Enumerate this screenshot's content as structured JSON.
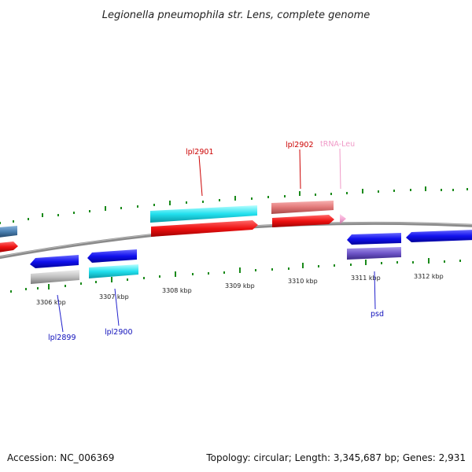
{
  "header": {
    "title": "Legionella pneumophila str. Lens, complete genome"
  },
  "footer": {
    "accession": "Accession: NC_006369",
    "summary": "Topology: circular; Length: 3,345,687 bp; Genes: 2,931"
  },
  "scale": {
    "unit_labels": [
      "3306 kbp",
      "3307 kbp",
      "3308 kbp",
      "3309 kbp",
      "3310 kbp",
      "3311 kbp",
      "3312 kbp"
    ]
  },
  "genes": [
    {
      "name": "lpl2899",
      "label": "lpl2899",
      "strand": "-",
      "color": "#0000ee",
      "gene_color": "#2222ee",
      "cds_color": "#c0c0c0"
    },
    {
      "name": "lpl2900",
      "label": "lpl2900",
      "strand": "-",
      "color": "#0000cc",
      "gene_color": "#1111dd",
      "cds_color": "#22e0ee"
    },
    {
      "name": "lpl2901",
      "label": "lpl2901",
      "strand": "+",
      "color": "#dd0000",
      "gene_color": "#ee1111",
      "cds_color": "#22e0ee"
    },
    {
      "name": "lpl2902",
      "label": "lpl2902",
      "strand": "+",
      "color": "#dd0000",
      "gene_color": "#ee1111",
      "cds_color": "#e27878"
    },
    {
      "name": "trna-leu",
      "label": "tRNA-Leu",
      "strand": "+",
      "color": "#f09ac8",
      "gene_color": "#f5a8d4"
    },
    {
      "name": "psd",
      "label": "psd",
      "strand": "-",
      "color": "#0000cc",
      "gene_color": "#1111ee",
      "cds_color": "#6e55c8"
    }
  ],
  "colors": {
    "backbone": "#808080",
    "tick_mark": "#1a8a1a",
    "forward_strand": "#ee1111",
    "reverse_strand": "#1111ee",
    "neighbor_left": "#4a7fb0"
  }
}
